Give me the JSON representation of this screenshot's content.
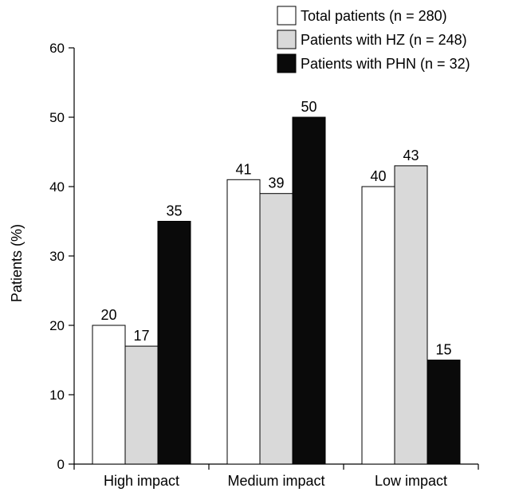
{
  "chart_data": {
    "type": "bar",
    "title": "",
    "xlabel": "",
    "ylabel": "Patients (%)",
    "ylim": [
      0,
      60
    ],
    "yticks": [
      0,
      10,
      20,
      30,
      40,
      50,
      60
    ],
    "grid": false,
    "legend_position": "top-right",
    "categories": [
      "High impact",
      "Medium impact",
      "Low impact"
    ],
    "series": [
      {
        "name": "Total patients (n = 280)",
        "color": "#ffffff",
        "values": [
          20,
          41,
          40
        ]
      },
      {
        "name": "Patients with HZ (n = 248)",
        "color": "#d9d9d9",
        "values": [
          17,
          39,
          43
        ]
      },
      {
        "name": "Patients with PHN (n = 32)",
        "color": "#0a0a0a",
        "values": [
          35,
          50,
          15
        ]
      }
    ]
  }
}
